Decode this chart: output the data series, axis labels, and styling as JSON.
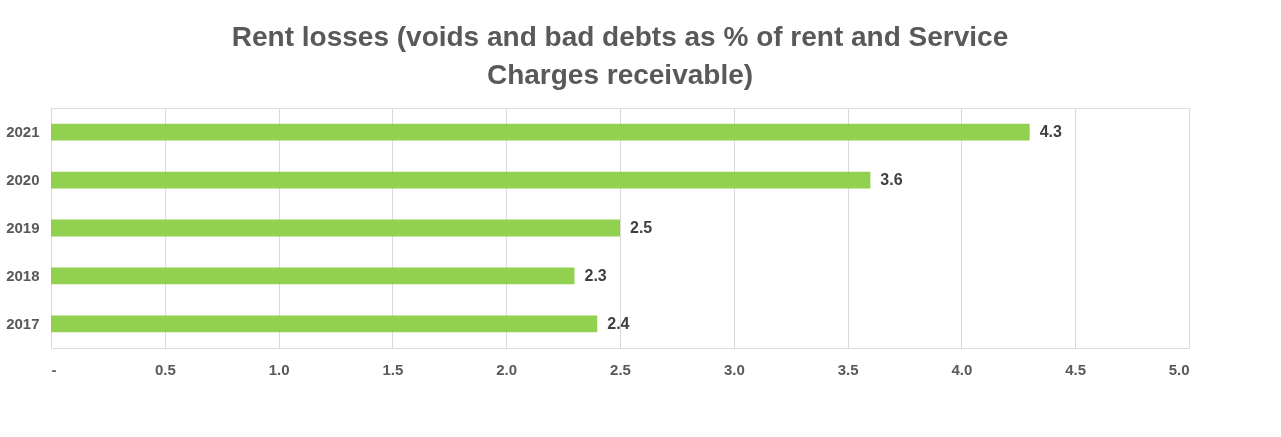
{
  "chart_data": {
    "type": "bar",
    "orientation": "horizontal",
    "title": "Rent losses (voids and bad debts as % of rent and Service Charges receivable)",
    "categories": [
      "2021",
      "2020",
      "2019",
      "2018",
      "2017"
    ],
    "values": [
      4.3,
      3.6,
      2.5,
      2.3,
      2.4
    ],
    "color": "#92d050",
    "xlim": [
      0,
      5
    ],
    "xticks": [
      {
        "value": 0,
        "label": "-"
      },
      0.5,
      {
        "value": 1,
        "label": "1.0"
      },
      1.5,
      {
        "value": 2,
        "label": "2.0"
      },
      2.5,
      {
        "value": 3,
        "label": "3.0"
      },
      3.5,
      {
        "value": 4,
        "label": "4.0"
      },
      4.5,
      {
        "value": 5,
        "label": "5.0"
      }
    ],
    "grid": "x",
    "data_labels": true
  }
}
